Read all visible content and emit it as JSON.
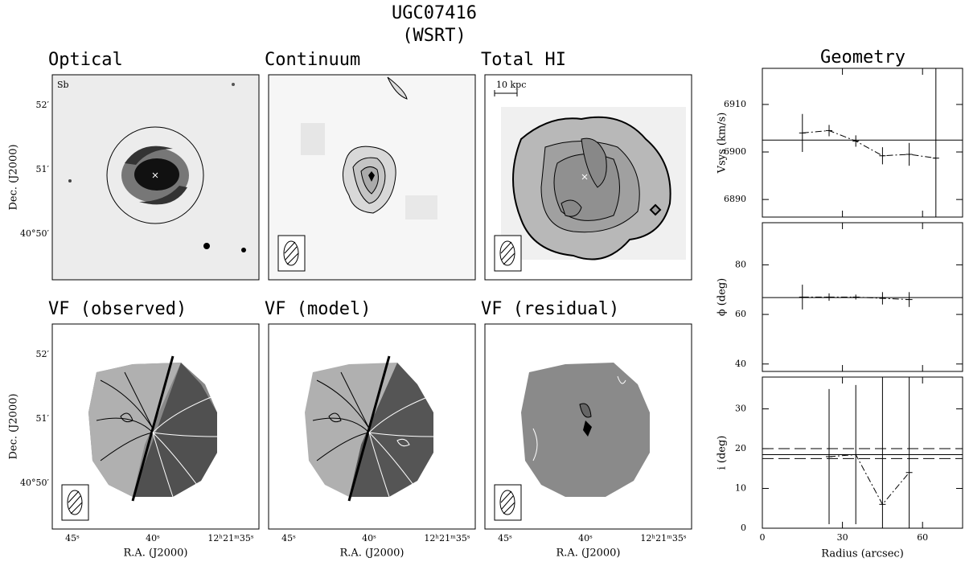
{
  "title": "UGC07416",
  "subtitle": "(WSRT)",
  "panels": [
    {
      "label": "Optical",
      "annotation": "Sb"
    },
    {
      "label": "Continuum"
    },
    {
      "label": "Total HI",
      "annotation": "10 kpc"
    },
    {
      "label": "VF (observed)"
    },
    {
      "label": "VF (model)"
    },
    {
      "label": "VF (residual)"
    }
  ],
  "dec_ticks": [
    "52′",
    "51′",
    "40°50′"
  ],
  "ra_ticks": [
    "45ˢ",
    "40ˢ",
    "12ʰ21ᵐ35ˢ"
  ],
  "dec_label": "Dec. (J2000)",
  "ra_label": "R.A. (J2000)",
  "geometry_title": "Geometry",
  "chart_data": [
    {
      "type": "line",
      "ylabel": "Vsys (km/s)",
      "x": [
        15,
        25,
        35,
        45,
        55,
        65
      ],
      "values": [
        6904,
        6904.5,
        6902.3,
        6899.2,
        6899.5,
        6898.7
      ],
      "errors": [
        4,
        1.2,
        1.2,
        1.8,
        2.4,
        40
      ],
      "hlines": [
        6902.5
      ],
      "xlim": [
        0,
        75
      ],
      "ylim": [
        6886.3,
        6917.6
      ],
      "yticks": [
        6890,
        6900,
        6910
      ]
    },
    {
      "type": "line",
      "ylabel": "ϕ (deg)",
      "x": [
        15,
        25,
        35,
        45,
        55
      ],
      "values": [
        67,
        67,
        67,
        66.5,
        66
      ],
      "errors": [
        5,
        1.5,
        1,
        2.5,
        3
      ],
      "hlines": [
        66.8
      ],
      "xlim": [
        0,
        75
      ],
      "ylim": [
        37,
        97
      ],
      "yticks": [
        40,
        60,
        80
      ]
    },
    {
      "type": "line",
      "ylabel": "i (deg)",
      "xlabel": "Radius (arcsec)",
      "x": [
        25,
        35,
        45,
        55
      ],
      "values": [
        18,
        18.5,
        6,
        14
      ],
      "errors": [
        17,
        17.5,
        40,
        40
      ],
      "hlines": [
        18.5
      ],
      "dashed_hlines": [
        20,
        17.5
      ],
      "xlim": [
        0,
        75
      ],
      "ylim": [
        0,
        38
      ],
      "xticks": [
        0,
        30,
        60
      ],
      "yticks": [
        0,
        10,
        20,
        30
      ]
    }
  ]
}
